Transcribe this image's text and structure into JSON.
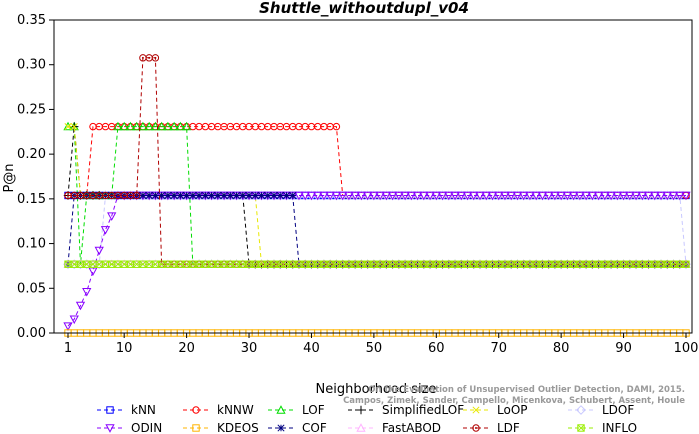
{
  "chart_data": {
    "type": "line",
    "title": "Shuttle_withoutdupl_v04",
    "xlabel": "Neighborhood size",
    "ylabel": "P@n",
    "xlim": [
      1,
      100
    ],
    "ylim": [
      0,
      0.35
    ],
    "xticks": [
      1,
      10,
      20,
      30,
      40,
      50,
      60,
      70,
      80,
      90,
      100
    ],
    "yticks": [
      0.0,
      0.05,
      0.1,
      0.15,
      0.2,
      0.25,
      0.3,
      0.35
    ],
    "ytick_labels": [
      "0.00",
      "0.05",
      "0.10",
      "0.15",
      "0.20",
      "0.25",
      "0.30",
      "0.35"
    ],
    "credit": [
      "On the Evaluation of Unsupervised Outlier Detection, DAMI, 2015.",
      "Campos, Zimek, Sander, Campello, Micenkova, Schubert, Assent, Houle"
    ],
    "legend_position": "bottom",
    "series": [
      {
        "name": "kNN",
        "color": "#0000ff",
        "marker": "square",
        "segments": [
          [
            1,
            100,
            0.1538
          ]
        ]
      },
      {
        "name": "kNNW",
        "color": "#ff0000",
        "marker": "circle",
        "segments": [
          [
            1,
            1,
            0.1538
          ],
          [
            2,
            4,
            0.1538
          ],
          [
            5,
            44,
            0.2308
          ],
          [
            45,
            100,
            0.1538
          ]
        ]
      },
      {
        "name": "LOF",
        "color": "#00dd00",
        "marker": "triangle-up",
        "segments": [
          [
            1,
            2,
            0.2308
          ],
          [
            3,
            3,
            0.0769
          ],
          [
            4,
            8,
            0.1538
          ],
          [
            9,
            11,
            0.2308
          ],
          [
            12,
            20,
            0.2308
          ],
          [
            21,
            100,
            0.0769
          ]
        ]
      },
      {
        "name": "SimplifiedLOF",
        "color": "#000000",
        "marker": "plus",
        "segments": [
          [
            1,
            1,
            0.1538
          ],
          [
            2,
            2,
            0.2308
          ],
          [
            3,
            29,
            0.1538
          ],
          [
            30,
            100,
            0.0769
          ]
        ]
      },
      {
        "name": "LoOP",
        "color": "#e8e800",
        "marker": "x",
        "segments": [
          [
            1,
            2,
            0.2308
          ],
          [
            3,
            31,
            0.1538
          ],
          [
            32,
            100,
            0.0769
          ]
        ]
      },
      {
        "name": "LDOF",
        "color": "#c8c8ff",
        "marker": "diamond",
        "segments": [
          [
            1,
            6,
            0.0769
          ],
          [
            7,
            99,
            0.1538
          ],
          [
            100,
            100,
            0.0769
          ]
        ]
      },
      {
        "name": "ODIN",
        "color": "#8800ff",
        "marker": "triangle-down",
        "points": [
          [
            1,
            0.0077
          ],
          [
            2,
            0.0154
          ],
          [
            3,
            0.0308
          ],
          [
            4,
            0.0462
          ],
          [
            5,
            0.0692
          ],
          [
            6,
            0.0923
          ],
          [
            7,
            0.1154
          ],
          [
            8,
            0.1308
          ],
          [
            9,
            0.1538
          ],
          [
            10,
            0.1538
          ]
        ],
        "segments": [
          [
            10,
            100,
            0.1538
          ]
        ]
      },
      {
        "name": "KDEOS",
        "color": "#ffb400",
        "marker": "square",
        "segments": [
          [
            1,
            100,
            0.0
          ]
        ]
      },
      {
        "name": "COF",
        "color": "#000080",
        "marker": "asterisk",
        "segments": [
          [
            1,
            1,
            0.0769
          ],
          [
            2,
            37,
            0.1538
          ],
          [
            38,
            68,
            0.0769
          ],
          [
            69,
            100,
            0.0769
          ]
        ]
      },
      {
        "name": "FastABOD",
        "color": "#ffb4ff",
        "marker": "triangle-up",
        "segments": [
          [
            1,
            100,
            0.0769
          ]
        ]
      },
      {
        "name": "LDF",
        "color": "#b00000",
        "marker": "circle-dot",
        "segments": [
          [
            1,
            1,
            0.1538
          ],
          [
            2,
            12,
            0.1538
          ],
          [
            13,
            15,
            0.3077
          ],
          [
            16,
            100,
            0.0769
          ]
        ]
      },
      {
        "name": "INFLO",
        "color": "#99ee00",
        "marker": "square-x",
        "segments": [
          [
            1,
            100,
            0.0769
          ]
        ]
      }
    ]
  }
}
